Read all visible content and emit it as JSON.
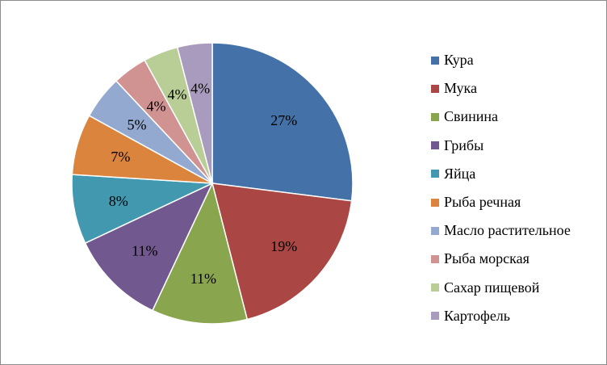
{
  "chart_data": {
    "type": "pie",
    "categories": [
      "Кура",
      "Мука",
      "Свинина",
      "Грибы",
      "Яйца",
      "Рыба речная",
      "Масло растительное",
      "Рыба морская",
      "Сахар пищевой",
      "Картофель"
    ],
    "values": [
      27,
      19,
      11,
      11,
      8,
      7,
      5,
      4,
      4,
      4
    ],
    "value_labels": [
      "27%",
      "19%",
      "11%",
      "11%",
      "8%",
      "7%",
      "5%",
      "4%",
      "4%",
      "4%"
    ],
    "colors": [
      "#4472A8",
      "#AA4643",
      "#89A54E",
      "#71588F",
      "#4198AF",
      "#DB843D",
      "#93A9CF",
      "#D19392",
      "#B9CD96",
      "#A99BBD"
    ],
    "legend_position": "right",
    "title": ""
  }
}
